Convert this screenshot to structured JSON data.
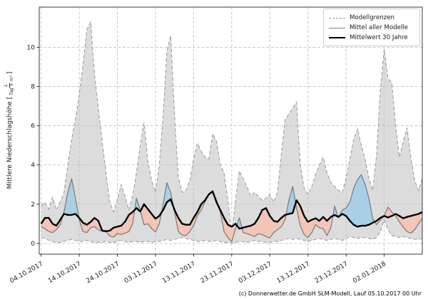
{
  "chart_data": {
    "type": "line",
    "title": "",
    "ylabel": "Mittlere Niederschlagshöhe",
    "ylabel_unit": {
      "open": "[",
      "numerator": "L",
      "denominator": "Tag × m²",
      "close": "]"
    },
    "grid": true,
    "legend_position": "top-right",
    "x_start_date": "04.10.2017",
    "x_step_days": 1,
    "x_tick_days": [
      0,
      10,
      20,
      30,
      40,
      50,
      60,
      70,
      80,
      90
    ],
    "x_tick_labels": [
      "04.10.2017",
      "14.10.2017",
      "24.10.2017",
      "03.11.2017",
      "13.11.2017",
      "23.11.2017",
      "03.12.2017",
      "13.12.2017",
      "23.12.2017",
      "02.01.2018"
    ],
    "y_ticks": [
      0,
      2,
      4,
      6,
      8,
      10
    ],
    "x_range_days": [
      -0.5,
      100
    ],
    "y_range": [
      -0.55,
      12.05
    ],
    "series": [
      {
        "name": "Modellgrenzen (obere Grenze)",
        "role": "upper",
        "style": "dashed",
        "color": "#999999",
        "values": [
          1.9,
          2.1,
          1.75,
          2.35,
          1.7,
          2.1,
          2.6,
          4.0,
          5.3,
          6.3,
          7.6,
          9.1,
          10.9,
          11.3,
          8.6,
          6.9,
          5.2,
          3.6,
          2.1,
          1.6,
          2.2,
          3.0,
          2.4,
          1.7,
          2.4,
          3.6,
          5.0,
          6.15,
          4.2,
          3.2,
          2.6,
          4.0,
          6.5,
          9.8,
          10.6,
          6.5,
          3.4,
          2.6,
          2.7,
          3.2,
          4.3,
          5.1,
          4.7,
          4.4,
          4.3,
          5.6,
          5.2,
          4.0,
          3.6,
          2.2,
          0.5,
          2.2,
          3.7,
          3.3,
          2.9,
          2.4,
          2.6,
          2.4,
          2.2,
          2.3,
          2.5,
          2.1,
          2.6,
          4.5,
          6.3,
          6.6,
          6.9,
          7.2,
          4.0,
          2.8,
          2.5,
          2.9,
          3.5,
          4.0,
          4.4,
          3.6,
          3.1,
          2.9,
          2.7,
          2.6,
          3.3,
          4.3,
          5.3,
          5.85,
          5.0,
          4.3,
          3.3,
          2.7,
          4.5,
          7.8,
          9.9,
          8.4,
          8.2,
          6.0,
          4.4,
          5.2,
          5.9,
          4.4,
          3.2,
          2.7,
          3.3
        ]
      },
      {
        "name": "Modellgrenzen (untere Grenze)",
        "role": "lower",
        "style": "dashed",
        "color": "#999999",
        "values": [
          0.3,
          0.25,
          0.15,
          0.1,
          0.05,
          0.05,
          0.1,
          0.15,
          0.2,
          0.15,
          0.1,
          0.1,
          0.15,
          0.1,
          0.05,
          0.05,
          0.05,
          0.1,
          0.05,
          0.05,
          0.1,
          0.15,
          0.1,
          0.05,
          0.1,
          0.1,
          0.05,
          0.1,
          0.1,
          0.05,
          0.1,
          0.1,
          0.15,
          0.2,
          0.15,
          0.2,
          0.25,
          0.3,
          0.25,
          0.2,
          0.15,
          0.1,
          0.1,
          0.15,
          0.1,
          0.1,
          0.15,
          0.1,
          0.05,
          0.05,
          0.0,
          0.05,
          0.1,
          0.1,
          0.05,
          0.1,
          0.15,
          0.1,
          0.1,
          0.05,
          0.05,
          0.1,
          0.1,
          0.15,
          0.2,
          0.25,
          0.2,
          0.25,
          0.2,
          0.15,
          0.1,
          0.15,
          0.2,
          0.25,
          0.2,
          0.15,
          0.2,
          0.25,
          0.2,
          0.15,
          0.25,
          0.35,
          0.3,
          0.25,
          0.3,
          0.3,
          0.25,
          0.2,
          0.3,
          0.6,
          1.2,
          0.7,
          0.4,
          0.35,
          0.3,
          0.35,
          0.3,
          0.25,
          0.2,
          0.2,
          0.25
        ]
      },
      {
        "name": "Mittel aller Modelle",
        "role": "model-mean",
        "style": "solid",
        "color": "#7f7f7f",
        "values": [
          0.85,
          0.75,
          0.6,
          0.55,
          0.7,
          0.95,
          1.6,
          2.6,
          3.3,
          2.3,
          1.2,
          0.6,
          0.55,
          0.8,
          0.85,
          0.7,
          0.62,
          0.6,
          0.38,
          0.32,
          0.5,
          0.45,
          0.52,
          0.6,
          1.0,
          2.3,
          1.7,
          0.95,
          1.0,
          0.75,
          0.58,
          1.0,
          2.0,
          3.1,
          2.6,
          1.6,
          0.6,
          0.42,
          0.4,
          0.6,
          0.9,
          1.4,
          1.7,
          2.1,
          2.52,
          2.7,
          2.2,
          1.6,
          0.6,
          0.3,
          0.08,
          0.75,
          1.3,
          0.55,
          0.5,
          0.42,
          0.35,
          0.5,
          0.45,
          0.35,
          0.28,
          0.55,
          0.7,
          0.85,
          1.2,
          2.2,
          2.9,
          1.8,
          0.9,
          0.45,
          0.3,
          0.55,
          0.95,
          0.8,
          0.75,
          0.4,
          0.8,
          1.9,
          1.3,
          1.7,
          1.8,
          2.1,
          2.8,
          3.25,
          3.5,
          3.0,
          2.3,
          1.25,
          0.95,
          1.2,
          1.4,
          1.85,
          1.6,
          1.4,
          1.1,
          0.83,
          0.6,
          0.52,
          0.7,
          1.0,
          1.27
        ]
      },
      {
        "name": "Mittelwert 30 Jahre",
        "role": "climatology",
        "style": "solid-bold",
        "color": "#000000",
        "values": [
          1.0,
          1.3,
          1.3,
          1.0,
          0.9,
          1.2,
          1.5,
          1.45,
          1.45,
          1.5,
          1.3,
          1.05,
          0.95,
          1.1,
          1.3,
          1.15,
          0.65,
          0.62,
          0.65,
          0.8,
          0.85,
          0.9,
          1.1,
          1.45,
          1.6,
          1.8,
          1.62,
          2.0,
          1.75,
          1.5,
          1.26,
          1.4,
          1.7,
          2.1,
          2.25,
          1.7,
          1.3,
          1.0,
          0.95,
          0.95,
          1.3,
          1.6,
          2.0,
          2.2,
          2.5,
          2.65,
          2.1,
          1.7,
          1.3,
          0.95,
          0.85,
          1.0,
          0.75,
          0.8,
          0.85,
          0.9,
          1.0,
          1.3,
          1.7,
          1.8,
          1.4,
          1.15,
          1.1,
          1.3,
          1.45,
          1.5,
          1.55,
          2.2,
          1.9,
          1.4,
          1.1,
          1.2,
          1.28,
          1.15,
          1.35,
          1.15,
          1.35,
          1.45,
          1.35,
          1.5,
          1.4,
          1.15,
          0.95,
          0.85,
          0.9,
          0.9,
          0.95,
          1.05,
          1.15,
          1.3,
          1.4,
          1.32,
          1.4,
          1.5,
          1.4,
          1.28,
          1.35,
          1.4,
          1.45,
          1.5,
          1.6
        ]
      }
    ],
    "fills": {
      "model_range_fill": "#dcdcdc",
      "above_climatology_fill": "#a9cfe5",
      "below_climatology_fill": "#f3c5b7"
    }
  },
  "legend": {
    "items": [
      {
        "label": "Modellgrenzen",
        "sample": "dashed"
      },
      {
        "label": "Mittel aller Modelle",
        "sample": "gray"
      },
      {
        "label": "Mittelwert 30 Jahre",
        "sample": "black"
      }
    ]
  },
  "footer": {
    "text": "(c) Donnerwetter.de GmbH SLM-Modell, Lauf 05.10.2017 00 Uhr"
  },
  "colors": {
    "grid": "#c3c3c3",
    "spine": "#262626",
    "text": "#1a1a1a",
    "background": "#ffffff"
  }
}
